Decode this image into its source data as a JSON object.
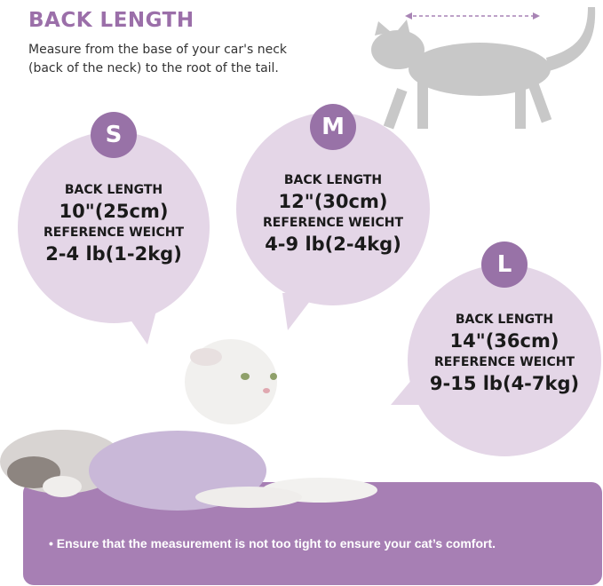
{
  "header": {
    "title": "BACK LENGTH",
    "description_line1": "Measure from the base of your car's neck",
    "description_line2": "(back of the neck) to the root of the tail."
  },
  "sizes": [
    {
      "size": "S",
      "back_length_label": "BACK LENGTH",
      "back_length": "10\"(25cm)",
      "weight_label": "REFERENCE WEICHT",
      "weight": "2-4 lb(1-2kg)"
    },
    {
      "size": "M",
      "back_length_label": "BACK LENGTH",
      "back_length": "12\"(30cm)",
      "weight_label": "REFERENCE WEICHT",
      "weight": "4-9 lb(2-4kg)"
    },
    {
      "size": "L",
      "back_length_label": "BACK LENGTH",
      "back_length": "14\"(36cm)",
      "weight_label": "REFERENCE WEICHT",
      "weight": "9-15 lb(4-7kg)"
    }
  ],
  "footer": {
    "note": "• Ensure that the measurement is not too tight to ensure your cat’s comfort."
  },
  "colors": {
    "accent": "#9b6fa9",
    "bubble": "#e4d6e7",
    "banner": "#a77fb4"
  }
}
